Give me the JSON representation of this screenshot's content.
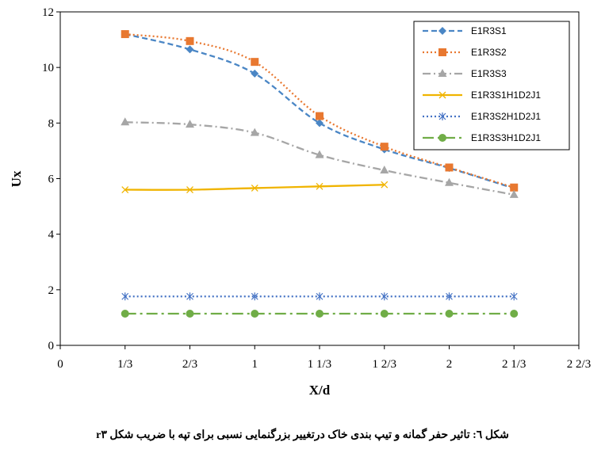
{
  "chart_data": {
    "type": "line",
    "xlabel": "X/d",
    "ylabel": "Ux",
    "xlim": [
      0,
      2.6667
    ],
    "ylim": [
      0,
      12
    ],
    "x_ticks": [
      {
        "v": 0,
        "label": "0"
      },
      {
        "v": 0.3333,
        "label": "1/3"
      },
      {
        "v": 0.6667,
        "label": "2/3"
      },
      {
        "v": 1.0,
        "label": "1"
      },
      {
        "v": 1.3333,
        "label": "1 1/3"
      },
      {
        "v": 1.6667,
        "label": "1 2/3"
      },
      {
        "v": 2.0,
        "label": "2"
      },
      {
        "v": 2.3333,
        "label": "2 1/3"
      },
      {
        "v": 2.6667,
        "label": "2 2/3"
      }
    ],
    "y_ticks": [
      0,
      2,
      4,
      6,
      8,
      10,
      12
    ],
    "grid": false,
    "legend_position": "top-right",
    "series": [
      {
        "name": "E1R3S1",
        "color": "#4a86c5",
        "dash": "7,4",
        "marker": "diamond",
        "x": [
          0.3333,
          0.6667,
          1.0,
          1.3333,
          1.6667,
          2.0,
          2.3333
        ],
        "y": [
          11.2,
          10.65,
          9.78,
          8.0,
          7.05,
          6.38,
          5.65
        ]
      },
      {
        "name": "E1R3S2",
        "color": "#e87830",
        "dash": "2,3",
        "marker": "square",
        "x": [
          0.3333,
          0.6667,
          1.0,
          1.3333,
          1.6667,
          2.0,
          2.3333
        ],
        "y": [
          11.2,
          10.95,
          10.2,
          8.25,
          7.15,
          6.4,
          5.68
        ]
      },
      {
        "name": "E1R3S3",
        "color": "#a6a6a6",
        "dash": "10,4,2,4",
        "marker": "triangle",
        "x": [
          0.3333,
          0.6667,
          1.0,
          1.3333,
          1.6667,
          2.0,
          2.3333
        ],
        "y": [
          8.03,
          7.95,
          7.65,
          6.85,
          6.3,
          5.85,
          5.42
        ]
      },
      {
        "name": "E1R3S1H1D2J1",
        "color": "#f0b400",
        "dash": "",
        "marker": "x",
        "x": [
          0.3333,
          0.6667,
          1.0,
          1.3333,
          1.6667
        ],
        "y": [
          5.6,
          5.6,
          5.66,
          5.72,
          5.78
        ]
      },
      {
        "name": "E1R3S2H1D2J1",
        "color": "#4472c4",
        "dash": "2,3",
        "marker": "star",
        "x": [
          0.3333,
          0.6667,
          1.0,
          1.3333,
          1.6667,
          2.0,
          2.3333
        ],
        "y": [
          1.76,
          1.76,
          1.76,
          1.76,
          1.76,
          1.76,
          1.76
        ]
      },
      {
        "name": "E1R3S3H1D2J1",
        "color": "#70ad47",
        "dash": "14,5,3,5",
        "marker": "circle",
        "x": [
          0.3333,
          0.6667,
          1.0,
          1.3333,
          1.6667,
          2.0,
          2.3333
        ],
        "y": [
          1.14,
          1.14,
          1.14,
          1.14,
          1.14,
          1.14,
          1.14
        ]
      }
    ]
  },
  "caption": "شکل ٦: تاثیر حفر گمانه و تیپ بندی خاک درتغییر بزرگنمایی نسبی برای تپه با ضریب شکل r۳"
}
